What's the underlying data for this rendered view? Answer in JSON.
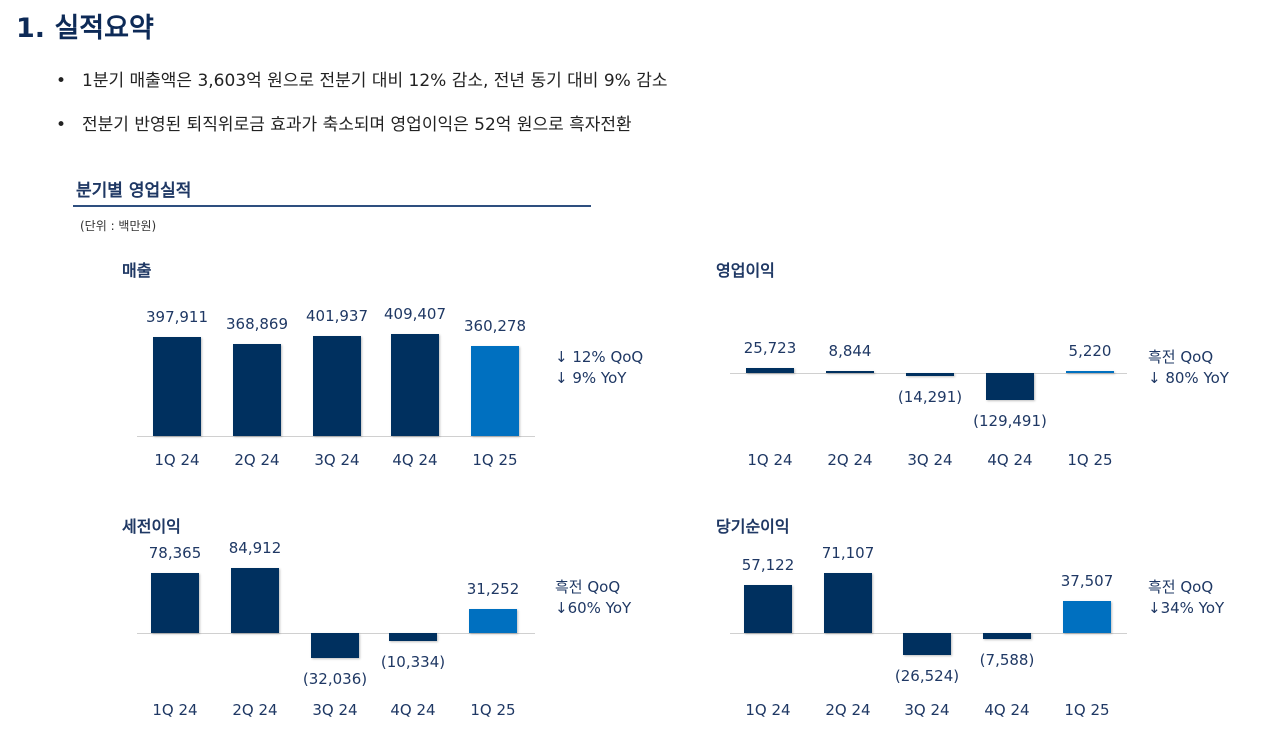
{
  "title": "1. 실적요약",
  "bullets": [
    "1분기 매출액은 3,603억 원으로 전분기 대비 12% 감소, 전년 동기 대비 9% 감소",
    "전분기 반영된 퇴직위로금 효과가 축소되며 영업이익은 52억 원으로 흑자전환"
  ],
  "bullet_symbol": "•",
  "section_title": "분기별 영업실적",
  "unit": "(단위 : 백만원)",
  "colors": {
    "bar": "#00305f",
    "highlight": "#0070c0"
  },
  "chart_data": [
    {
      "type": "bar",
      "title": "매출",
      "categories": [
        "1Q 24",
        "2Q 24",
        "3Q 24",
        "4Q 24",
        "1Q 25"
      ],
      "values": [
        397911,
        368869,
        401937,
        409407,
        360278
      ],
      "labels": [
        "397,911",
        "368,869",
        "401,937",
        "409,407",
        "360,278"
      ],
      "notes": [
        "↓ 12% QoQ",
        "↓ 9% YoY"
      ]
    },
    {
      "type": "bar",
      "title": "영업이익",
      "categories": [
        "1Q 24",
        "2Q 24",
        "3Q 24",
        "4Q 24",
        "1Q 25"
      ],
      "values": [
        25723,
        8844,
        -14291,
        -129491,
        5220
      ],
      "labels": [
        "25,723",
        "8,844",
        "(14,291)",
        "(129,491)",
        "5,220"
      ],
      "notes": [
        "흑전 QoQ",
        "↓ 80% YoY"
      ]
    },
    {
      "type": "bar",
      "title": "세전이익",
      "categories": [
        "1Q 24",
        "2Q 24",
        "3Q 24",
        "4Q 24",
        "1Q 25"
      ],
      "values": [
        78365,
        84912,
        -32036,
        -10334,
        31252
      ],
      "labels": [
        "78,365",
        "84,912",
        "(32,036)",
        "(10,334)",
        "31,252"
      ],
      "notes": [
        "흑전 QoQ",
        "↓60% YoY"
      ]
    },
    {
      "type": "bar",
      "title": "당기순이익",
      "categories": [
        "1Q 24",
        "2Q 24",
        "3Q 24",
        "4Q 24",
        "1Q 25"
      ],
      "values": [
        57122,
        71107,
        -26524,
        -7588,
        37507
      ],
      "labels": [
        "57,122",
        "71,107",
        "(26,524)",
        "(7,588)",
        "37,507"
      ],
      "notes": [
        "흑전 QoQ",
        "↓34% YoY"
      ]
    }
  ]
}
